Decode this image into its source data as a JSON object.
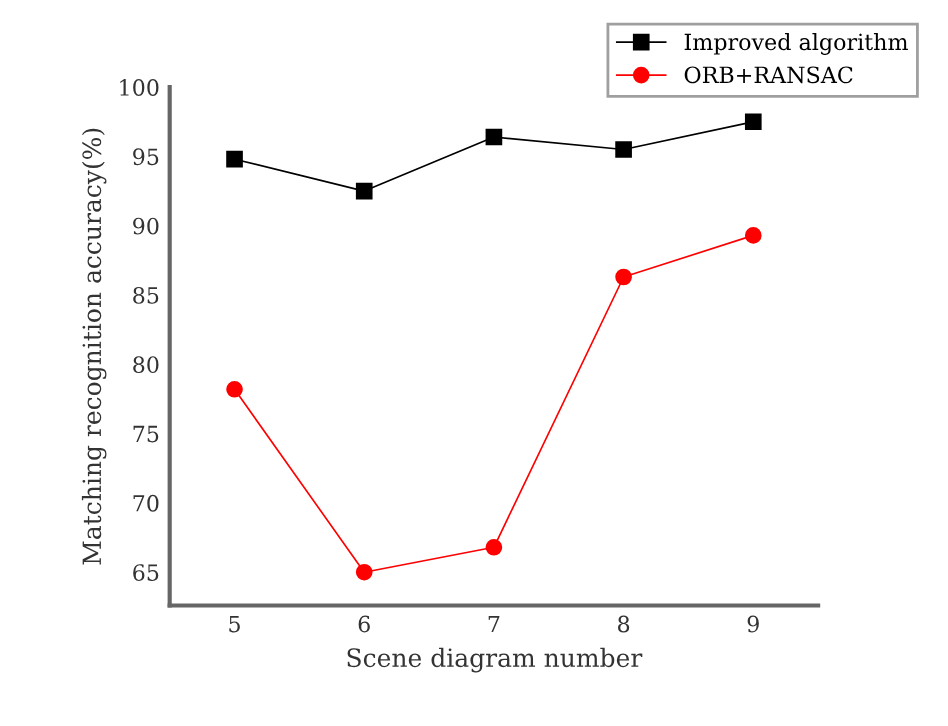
{
  "chart_data": {
    "type": "line",
    "xlabel": "Scene diagram number",
    "ylabel": "Matching recognition accuracy(%)",
    "x": [
      5,
      6,
      7,
      8,
      9
    ],
    "series": [
      {
        "name": "Improved algorithm",
        "color": "#000000",
        "marker": "square",
        "values": [
          94.8,
          92.5,
          96.4,
          95.5,
          97.5
        ]
      },
      {
        "name": "ORB+RANSAC",
        "color": "#ff0000",
        "marker": "circle",
        "values": [
          78.2,
          65.0,
          66.8,
          86.3,
          89.3
        ]
      }
    ],
    "xlim": [
      4.5,
      9.5
    ],
    "xticks": [
      5,
      6,
      7,
      8,
      9
    ],
    "ylim": [
      62.6,
      100
    ],
    "yticks": [
      65,
      70,
      75,
      80,
      85,
      90,
      95,
      100
    ],
    "grid": false,
    "legend": "top right",
    "line_style": "solid"
  }
}
